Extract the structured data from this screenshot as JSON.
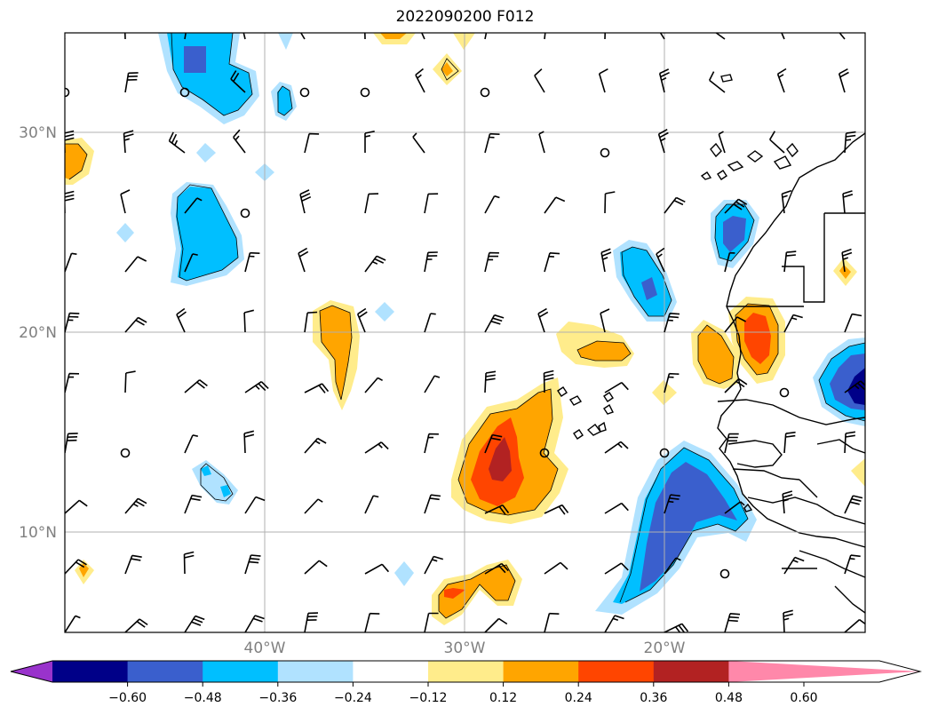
{
  "title": "2022090200 F012",
  "lat_labels": [
    "30°N",
    "20°N",
    "10°N"
  ],
  "lon_labels": [
    "40°W",
    "30°W",
    "20°W"
  ],
  "colorbar": {
    "ticks": [
      "−0.60",
      "−0.48",
      "−0.36",
      "−0.24",
      "−0.12",
      "0.12",
      "0.24",
      "0.36",
      "0.48",
      "0.60"
    ],
    "colors": [
      "#9933cc",
      "#000088",
      "#3a5fcd",
      "#00bfff",
      "#b0e2ff",
      "#ffffff",
      "#ffec8b",
      "#ffa500",
      "#ff4500",
      "#b22222",
      "#ff88aa"
    ]
  },
  "palette": {
    "dblue": "#000088",
    "mblue": "#3a5fcd",
    "blue": "#00bfff",
    "lblue": "#b0e2ff",
    "yellow": "#ffec8b",
    "orange": "#ffa500",
    "red": "#ff4500",
    "dred": "#b22222"
  }
}
